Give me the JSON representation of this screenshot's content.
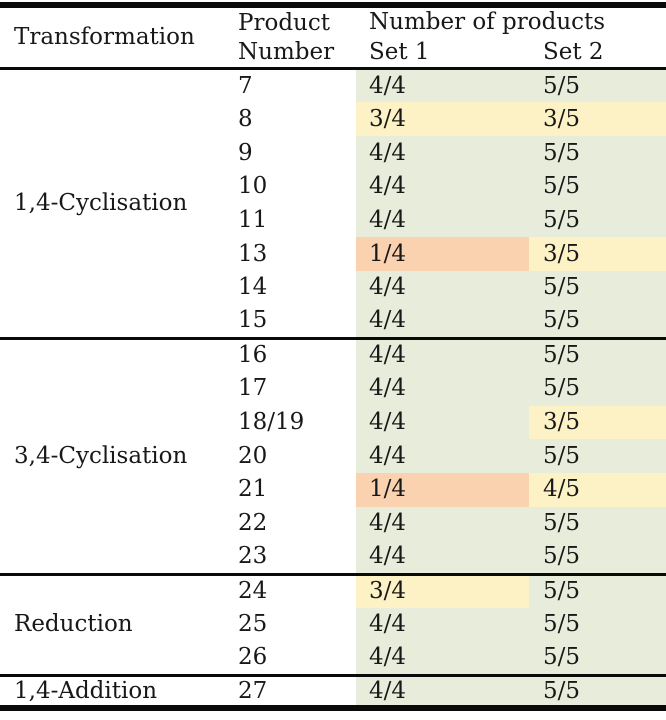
{
  "table": {
    "headers": {
      "transformation": "Transformation",
      "product_number": "Product Number",
      "number_of_products": "Number of products",
      "set1": "Set 1",
      "set2": "Set 2"
    },
    "status_colors": {
      "good": "#e7ecdb",
      "partial": "#fdf2c6",
      "poor": "#fbd2b0"
    },
    "rule_color": "#0a0a0a",
    "text_color": "#181818",
    "sections": [
      {
        "label": "1,4-Cyclisation",
        "rows": [
          {
            "product": "7",
            "set1": "4/4",
            "set1_status": "good",
            "set2": "5/5",
            "set2_status": "good"
          },
          {
            "product": "8",
            "set1": "3/4",
            "set1_status": "partial",
            "set2": "3/5",
            "set2_status": "partial"
          },
          {
            "product": "9",
            "set1": "4/4",
            "set1_status": "good",
            "set2": "5/5",
            "set2_status": "good"
          },
          {
            "product": "10",
            "set1": "4/4",
            "set1_status": "good",
            "set2": "5/5",
            "set2_status": "good"
          },
          {
            "product": "11",
            "set1": "4/4",
            "set1_status": "good",
            "set2": "5/5",
            "set2_status": "good"
          },
          {
            "product": "13",
            "set1": "1/4",
            "set1_status": "poor",
            "set2": "3/5",
            "set2_status": "partial"
          },
          {
            "product": "14",
            "set1": "4/4",
            "set1_status": "good",
            "set2": "5/5",
            "set2_status": "good"
          },
          {
            "product": "15",
            "set1": "4/4",
            "set1_status": "good",
            "set2": "5/5",
            "set2_status": "good"
          }
        ]
      },
      {
        "label": "3,4-Cyclisation",
        "rows": [
          {
            "product": "16",
            "set1": "4/4",
            "set1_status": "good",
            "set2": "5/5",
            "set2_status": "good"
          },
          {
            "product": "17",
            "set1": "4/4",
            "set1_status": "good",
            "set2": "5/5",
            "set2_status": "good"
          },
          {
            "product": "18/19",
            "set1": "4/4",
            "set1_status": "good",
            "set2": "3/5",
            "set2_status": "partial"
          },
          {
            "product": "20",
            "set1": "4/4",
            "set1_status": "good",
            "set2": "5/5",
            "set2_status": "good"
          },
          {
            "product": "21",
            "set1": "1/4",
            "set1_status": "poor",
            "set2": "4/5",
            "set2_status": "partial"
          },
          {
            "product": "22",
            "set1": "4/4",
            "set1_status": "good",
            "set2": "5/5",
            "set2_status": "good"
          },
          {
            "product": "23",
            "set1": "4/4",
            "set1_status": "good",
            "set2": "5/5",
            "set2_status": "good"
          }
        ]
      },
      {
        "label": "Reduction",
        "rows": [
          {
            "product": "24",
            "set1": "3/4",
            "set1_status": "partial",
            "set2": "5/5",
            "set2_status": "good"
          },
          {
            "product": "25",
            "set1": "4/4",
            "set1_status": "good",
            "set2": "5/5",
            "set2_status": "good"
          },
          {
            "product": "26",
            "set1": "4/4",
            "set1_status": "good",
            "set2": "5/5",
            "set2_status": "good"
          }
        ]
      },
      {
        "label": "1,4-Addition",
        "rows": [
          {
            "product": "27",
            "set1": "4/4",
            "set1_status": "good",
            "set2": "5/5",
            "set2_status": "good"
          }
        ]
      }
    ]
  }
}
